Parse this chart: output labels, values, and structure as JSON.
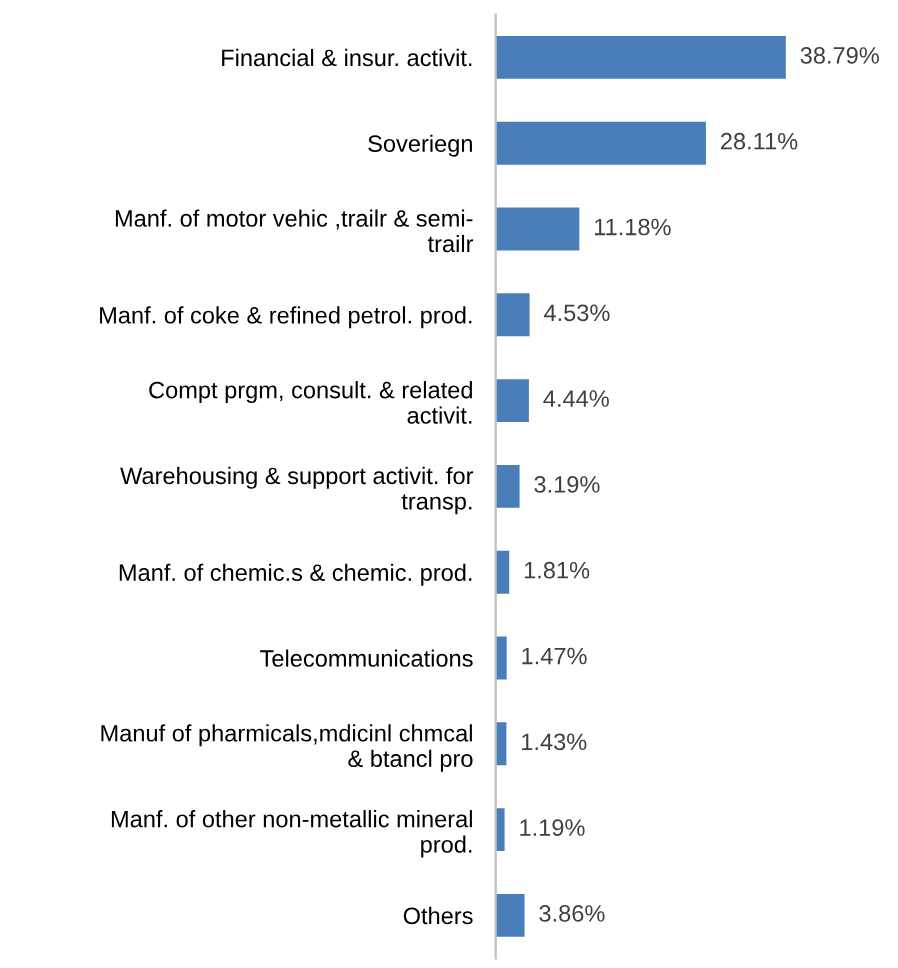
{
  "chart_data": {
    "type": "bar",
    "orientation": "horizontal",
    "categories": [
      "Financial & insur. activit.",
      "Soveriegn",
      "Manf. of motor vehic ,trailr & semi-\ntrailr",
      "Manf. of coke & refined petrol. prod.",
      "Compt prgm, consult. & related\nactivit.",
      "Warehousing & support activit. for\ntransp.",
      "Manf. of chemic.s & chemic. prod.",
      "Telecommunications",
      "Manuf of pharmicals,mdicinl chmcal\n& btancl pro",
      "Manf. of other non-metallic mineral\nprod.",
      "Others"
    ],
    "values": [
      38.79,
      28.11,
      11.18,
      4.53,
      4.44,
      3.19,
      1.81,
      1.47,
      1.43,
      1.19,
      3.86
    ],
    "value_labels": [
      "38.79%",
      "28.11%",
      "11.18%",
      "4.53%",
      "4.44%",
      "3.19%",
      "1.81%",
      "1.47%",
      "1.43%",
      "1.19%",
      "3.86%"
    ],
    "color": "#4a7ebb",
    "grid": false,
    "legend": false
  }
}
